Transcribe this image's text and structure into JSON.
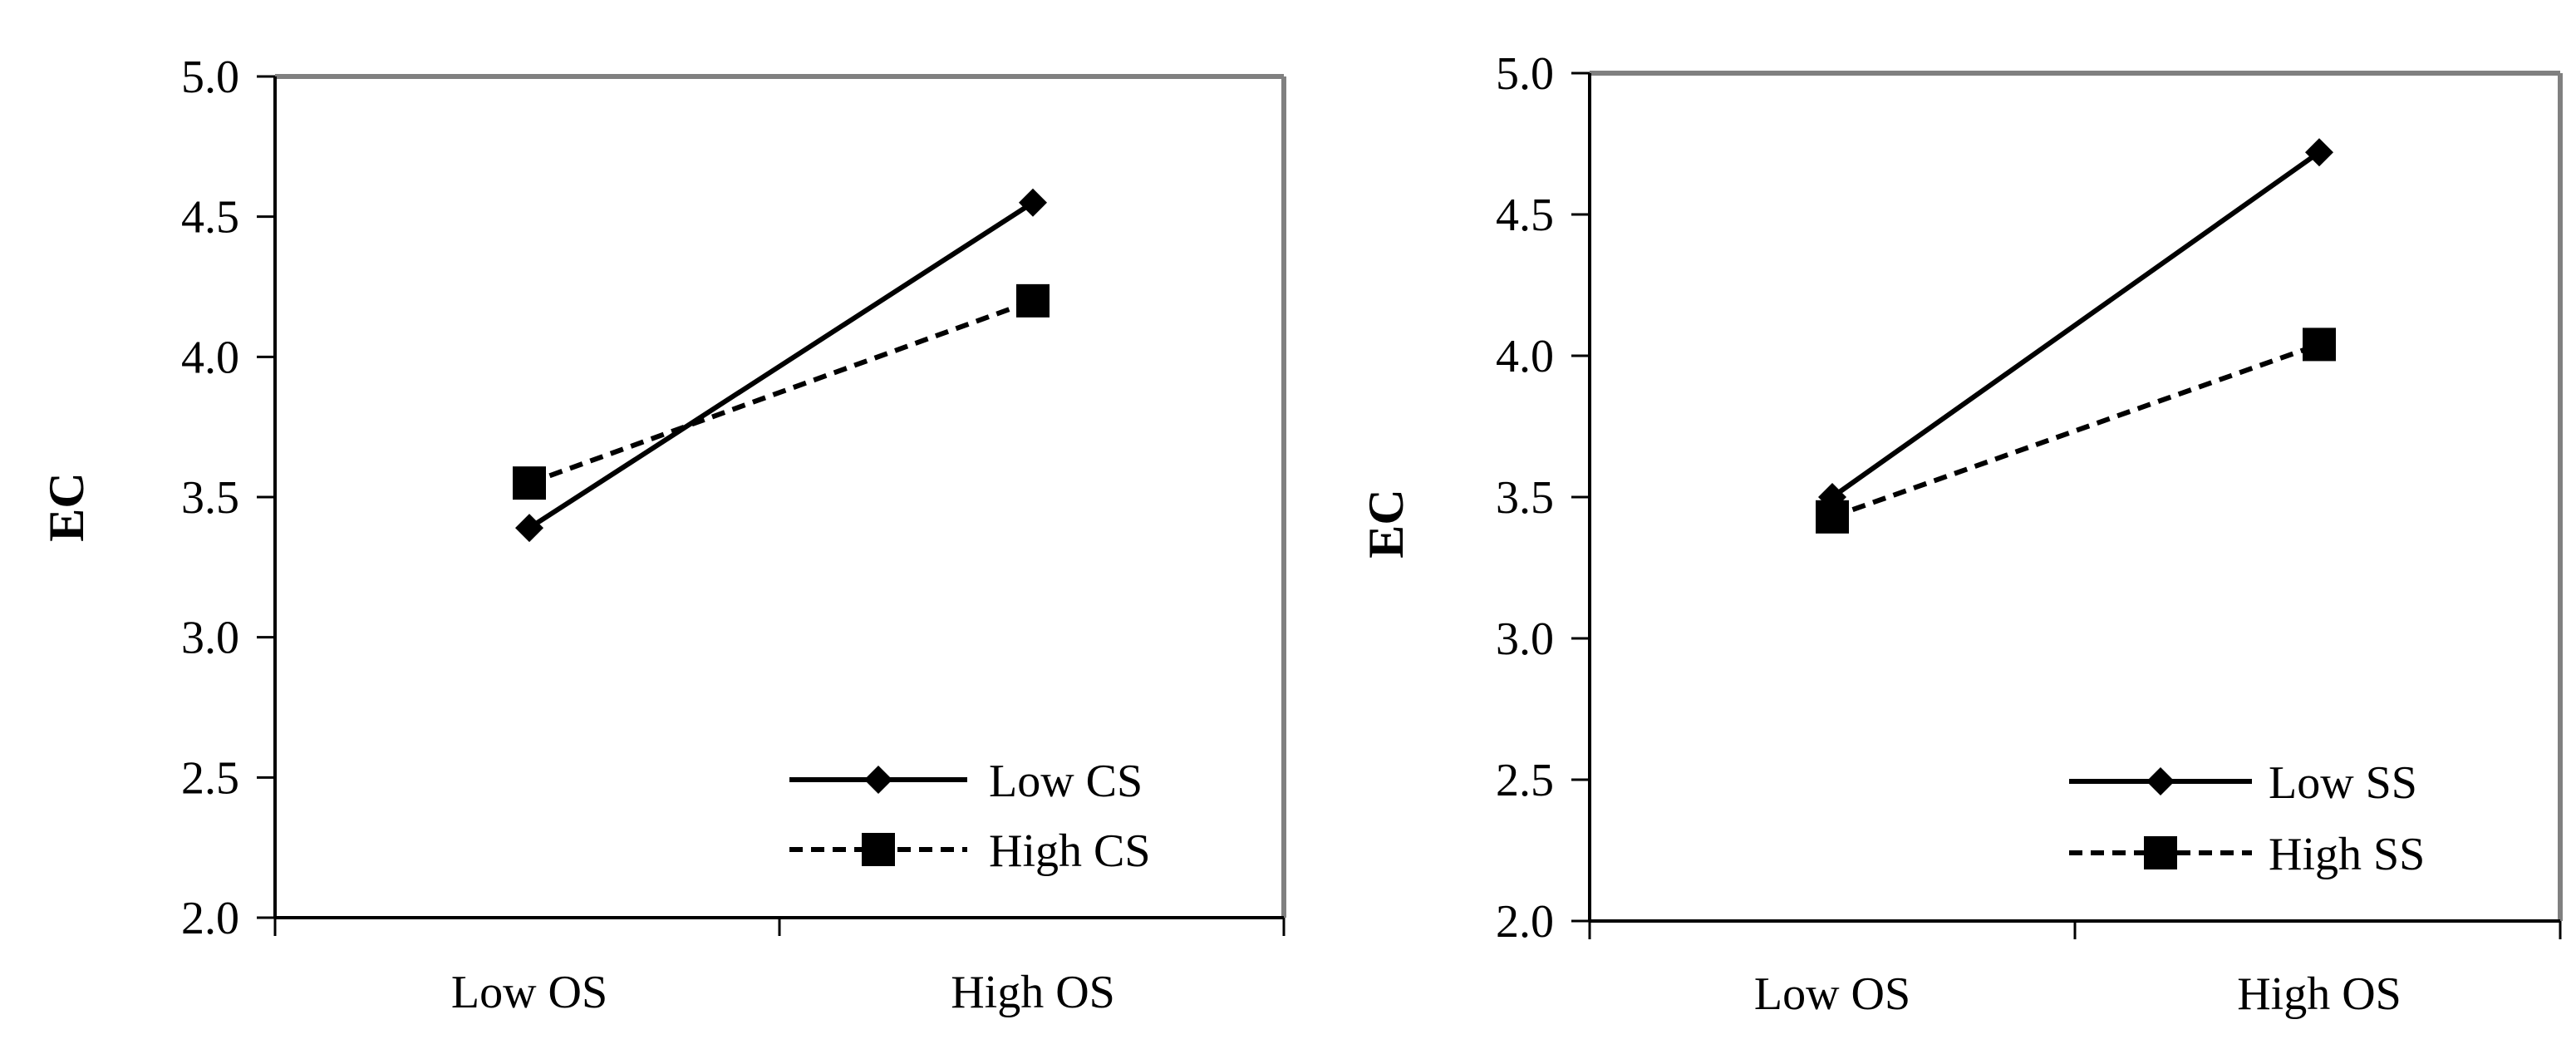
{
  "colors": {
    "line": "#000000",
    "frame": "#808080",
    "background": "#ffffff"
  },
  "chart_data": [
    {
      "type": "line",
      "title": "",
      "xlabel": "",
      "ylabel": "EC",
      "categories": [
        "Low OS",
        "High OS"
      ],
      "ylim": [
        2.0,
        5.0
      ],
      "yticks": [
        "2.0",
        "2.5",
        "3.0",
        "3.5",
        "4.0",
        "4.5",
        "5.0"
      ],
      "grid": false,
      "legend_position": "bottom-right",
      "series": [
        {
          "name": "Low CS",
          "values": [
            3.39,
            4.55
          ],
          "marker": "diamond",
          "dash": "solid"
        },
        {
          "name": "High CS",
          "values": [
            3.55,
            4.2
          ],
          "marker": "square",
          "dash": "dashed"
        }
      ]
    },
    {
      "type": "line",
      "title": "",
      "xlabel": "",
      "ylabel": "EC",
      "categories": [
        "Low OS",
        "High OS"
      ],
      "ylim": [
        2.0,
        5.0
      ],
      "yticks": [
        "2.0",
        "2.5",
        "3.0",
        "3.5",
        "4.0",
        "4.5",
        "5.0"
      ],
      "grid": false,
      "legend_position": "bottom-right",
      "series": [
        {
          "name": "Low SS",
          "values": [
            3.5,
            4.72
          ],
          "marker": "diamond",
          "dash": "solid"
        },
        {
          "name": "High SS",
          "values": [
            3.43,
            4.04
          ],
          "marker": "square",
          "dash": "dashed"
        }
      ]
    }
  ]
}
